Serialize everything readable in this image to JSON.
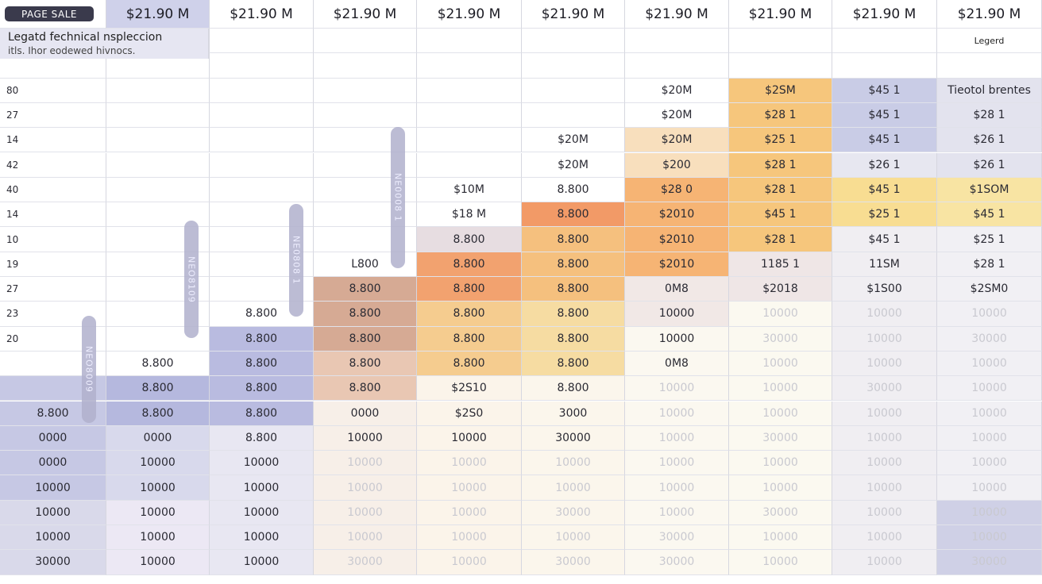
{
  "badge": "PAGE SALE",
  "legend": {
    "title": "Legatd fechnical nspleccion",
    "subtitle": "itls. Ihor eodewed hivnocs."
  },
  "chart_data": {
    "type": "table",
    "column_headers": [
      "$21.90 M",
      "$21.90 M",
      "$21.90 M",
      "$21.90 M",
      "$21.90 M",
      "$21.90 M",
      "$21.90 M",
      "$21.90 M",
      "$21.90 M"
    ],
    "header_texts": [
      "",
      "",
      "",
      "",
      "",
      "",
      "",
      "",
      "",
      "Legerd"
    ],
    "row_labels": [
      "",
      "",
      "80",
      "27",
      "14",
      "42",
      "40",
      "14",
      "10",
      "19",
      "27",
      "23",
      "20",
      "",
      "",
      "",
      "",
      "",
      "",
      "",
      ""
    ],
    "rows": [
      [
        "",
        "",
        "",
        "",
        "",
        "",
        "",
        "",
        "",
        "",
        ""
      ],
      [
        "",
        "",
        "",
        "",
        "",
        "",
        "",
        "",
        "",
        "",
        ""
      ],
      [
        "",
        "",
        "",
        "",
        "",
        "",
        "",
        "$20M",
        "$2SM",
        "$45 1",
        "Tieotol brentes"
      ],
      [
        "",
        "",
        "",
        "",
        "",
        "",
        "",
        "$20M",
        "$28 1",
        "$45 1",
        "$28 1"
      ],
      [
        "",
        "",
        "",
        "",
        "",
        "",
        "$20M",
        "$20M",
        "$25 1",
        "$45 1",
        "$26 1"
      ],
      [
        "",
        "",
        "",
        "",
        "",
        "",
        "$20M",
        "$200",
        "$28 1",
        "$26 1",
        "$26 1"
      ],
      [
        "",
        "",
        "",
        "",
        "",
        "$10M",
        "8.800",
        "$28 0",
        "$28 1",
        "$45 1",
        "$1SOM"
      ],
      [
        "",
        "",
        "",
        "",
        "",
        "$18 M",
        "8.800",
        "$2010",
        "$45 1",
        "$25 1",
        "$45 1"
      ],
      [
        "",
        "",
        "",
        "",
        "",
        "8.800",
        "8.800",
        "$2010",
        "$28 1",
        "$45 1",
        "$25 1"
      ],
      [
        "",
        "",
        "",
        "",
        "L800",
        "8.800",
        "8.800",
        "$2010",
        "1185 1",
        "11SM",
        "$28 1"
      ],
      [
        "",
        "",
        "",
        "",
        "8.800",
        "8.800",
        "8.800",
        "0M8",
        "$2018",
        "$1S00",
        "$2SM0"
      ],
      [
        "",
        "",
        "",
        "8.800",
        "8.800",
        "8.800",
        "8.800",
        "10000",
        "10000",
        "10000",
        "10000"
      ],
      [
        "",
        "",
        "",
        "8.800",
        "8.800",
        "8.800",
        "8.800",
        "10000",
        "30000",
        "10000",
        "30000"
      ],
      [
        "",
        "",
        "8.800",
        "8.800",
        "8.800",
        "8.800",
        "8.800",
        "0M8",
        "10000",
        "10000",
        "10000"
      ],
      [
        "",
        "",
        "8.800",
        "8.800",
        "8.800",
        "$2S10",
        "8.800",
        "10000",
        "10000",
        "30000",
        "10000"
      ],
      [
        "",
        "8.800",
        "8.800",
        "8.800",
        "0000",
        "$2S0",
        "3000",
        "10000",
        "10000",
        "10000",
        "10000"
      ],
      [
        "",
        "0000",
        "0000",
        "8.800",
        "10000",
        "10000",
        "30000",
        "10000",
        "30000",
        "10000",
        "10000"
      ],
      [
        "",
        "0000",
        "10000",
        "10000",
        "10000",
        "10000",
        "10000",
        "10000",
        "10000",
        "10000",
        "10000"
      ],
      [
        "",
        "10000",
        "10000",
        "10000",
        "10000",
        "10000",
        "10000",
        "10000",
        "10000",
        "10000",
        "10000"
      ],
      [
        "",
        "10000",
        "10000",
        "10000",
        "10000",
        "10000",
        "30000",
        "10000",
        "30000",
        "10000",
        "10000"
      ],
      [
        "",
        "10000",
        "10000",
        "10000",
        "10000",
        "10000",
        "10000",
        "30000",
        "10000",
        "10000",
        "10000"
      ],
      [
        "",
        "30000",
        "10000",
        "10000",
        "30000",
        "10000",
        "30000",
        "30000",
        "10000",
        "10000",
        "30000"
      ]
    ],
    "pill_labels": [
      "NEO8009",
      "NEO8109",
      "NE0808 1",
      "NE0008 1"
    ],
    "colors": {
      "lavender": "#b9bcdd",
      "orange": "#f3a578",
      "peach": "#f8cfa3",
      "yellow": "#f6d98e",
      "rose": "#dcb8a4",
      "gray": "#e6e6ee",
      "cream": "#f8f3e7"
    }
  }
}
